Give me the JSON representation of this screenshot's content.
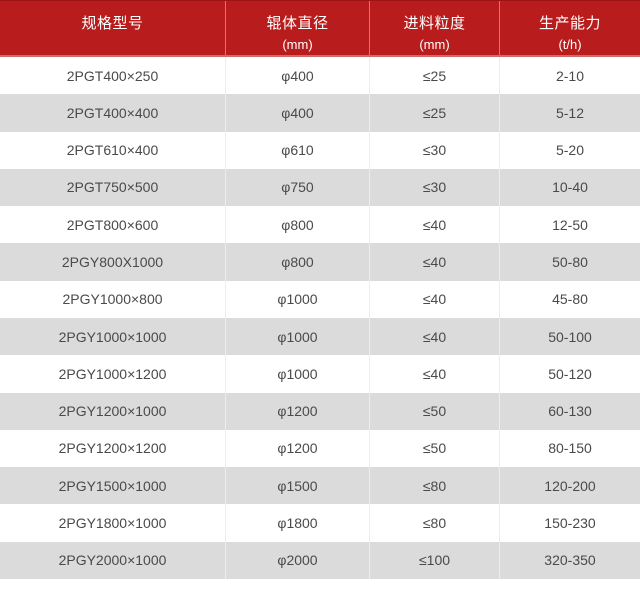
{
  "table": {
    "columns": [
      {
        "label": "规格型号",
        "unit": ""
      },
      {
        "label": "辊体直径",
        "unit": "(mm)"
      },
      {
        "label": "进料粒度",
        "unit": "(mm)"
      },
      {
        "label": "生产能力",
        "unit": "(t/h)"
      }
    ],
    "rows": [
      [
        "2PGT400×250",
        "φ400",
        "≤25",
        "2-10"
      ],
      [
        "2PGT400×400",
        "φ400",
        "≤25",
        "5-12"
      ],
      [
        "2PGT610×400",
        "φ610",
        "≤30",
        "5-20"
      ],
      [
        "2PGT750×500",
        "φ750",
        "≤30",
        "10-40"
      ],
      [
        "2PGT800×600",
        "φ800",
        "≤40",
        "12-50"
      ],
      [
        "2PGY800X1000",
        "φ800",
        "≤40",
        "50-80"
      ],
      [
        "2PGY1000×800",
        "φ1000",
        "≤40",
        "45-80"
      ],
      [
        "2PGY1000×1000",
        "φ1000",
        "≤40",
        "50-100"
      ],
      [
        "2PGY1000×1200",
        "φ1000",
        "≤40",
        "50-120"
      ],
      [
        "2PGY1200×1000",
        "φ1200",
        "≤50",
        "60-130"
      ],
      [
        "2PGY1200×1200",
        "φ1200",
        "≤50",
        "80-150"
      ],
      [
        "2PGY1500×1000",
        "φ1500",
        "≤80",
        "120-200"
      ],
      [
        "2PGY1800×1000",
        "φ1800",
        "≤80",
        "150-230"
      ],
      [
        "2PGY2000×1000",
        "φ2000",
        "≤100",
        "320-350"
      ]
    ]
  },
  "colors": {
    "header_bg": "#b91c1c",
    "header_text": "#ffffff",
    "header_divider": "#ffffff66",
    "header_top_line": "#9e1414",
    "header_bottom_line": "#ce6b6b",
    "row_bg": "#ffffff",
    "row_alt_bg": "#dbdbdb",
    "row_text": "#4a4a4a",
    "cell_divider": "#ededed",
    "page_bg": "#ffffff"
  }
}
